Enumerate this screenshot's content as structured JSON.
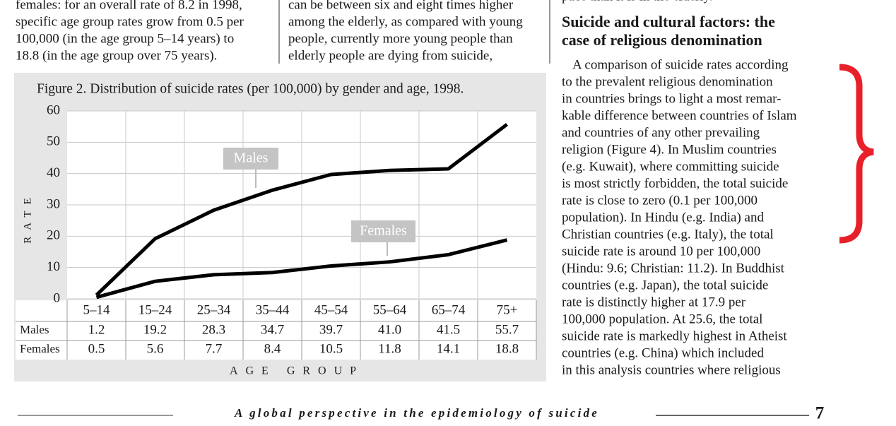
{
  "columns": [
    {
      "lines": [
        "females: for an overall rate of 8.2 in 1998,",
        "specific age group rates grow from 0.5 per",
        "100,000 (in the age group 5–14 years) to",
        "18.8 (in the age group over 75 years)."
      ]
    },
    {
      "lines": [
        "can be between six and eight times higher",
        "among the elderly, as compared with young",
        "people, currently more young people than",
        "elderly people are dying from suicide,"
      ]
    }
  ],
  "right_column": {
    "top_line": "pace than it is in the elderly.",
    "heading": [
      "Suicide and cultural factors: the",
      "case of religious denomination"
    ],
    "lines": [
      "A comparison of suicide rates according",
      "to the prevalent religious denomination",
      "in countries brings to light a most remar-",
      "kable difference between countries of Islam",
      "and countries of any other prevailing",
      "religion (Figure 4). In Muslim countries",
      "(e.g. Kuwait), where committing suicide",
      "is most strictly forbidden, the total suicide",
      "rate is close to zero (0.1 per 100,000",
      "population). In Hindu (e.g. India) and",
      "Christian countries (e.g. Italy), the total",
      "suicide rate is around 10 per 100,000",
      "(Hindu: 9.6; Christian: 11.2). In Buddhist",
      "countries (e.g. Japan), the total suicide",
      "rate is distinctly higher at 17.9 per",
      "100,000 population. At 25.6, the total",
      "suicide rate is markedly highest in Atheist",
      "countries (e.g. China) which included",
      "in this analysis countries where religious"
    ]
  },
  "chart_data": {
    "type": "line",
    "title": "Figure 2. Distribution of suicide rates (per 100,000) by gender and age, 1998.",
    "categories": [
      "5–14",
      "15–24",
      "25–34",
      "35–44",
      "45–54",
      "55–64",
      "65–74",
      "75+"
    ],
    "series": [
      {
        "name": "Males",
        "color": "#000000",
        "values": [
          1.2,
          19.2,
          28.3,
          34.7,
          39.7,
          41.0,
          41.5,
          55.7
        ],
        "value_labels": [
          "1.2",
          "19.2",
          "28.3",
          "34.7",
          "39.7",
          "41.0",
          "41.5",
          "55.7"
        ]
      },
      {
        "name": "Females",
        "color": "#000000",
        "values": [
          0.5,
          5.6,
          7.7,
          8.4,
          10.5,
          11.8,
          14.1,
          18.8
        ],
        "value_labels": [
          "0.5",
          "5.6",
          "7.7",
          "8.4",
          "10.5",
          "11.8",
          "14.1",
          "18.8"
        ]
      }
    ],
    "ylim": [
      0,
      60
    ],
    "yticks": [
      0,
      10,
      20,
      30,
      40,
      50,
      60
    ],
    "xlabel": "AGE GROUP",
    "ylabel": "RATE",
    "grid": true
  },
  "footer": {
    "text": "A global perspective in the epidemiology of suicide",
    "page": "7"
  }
}
